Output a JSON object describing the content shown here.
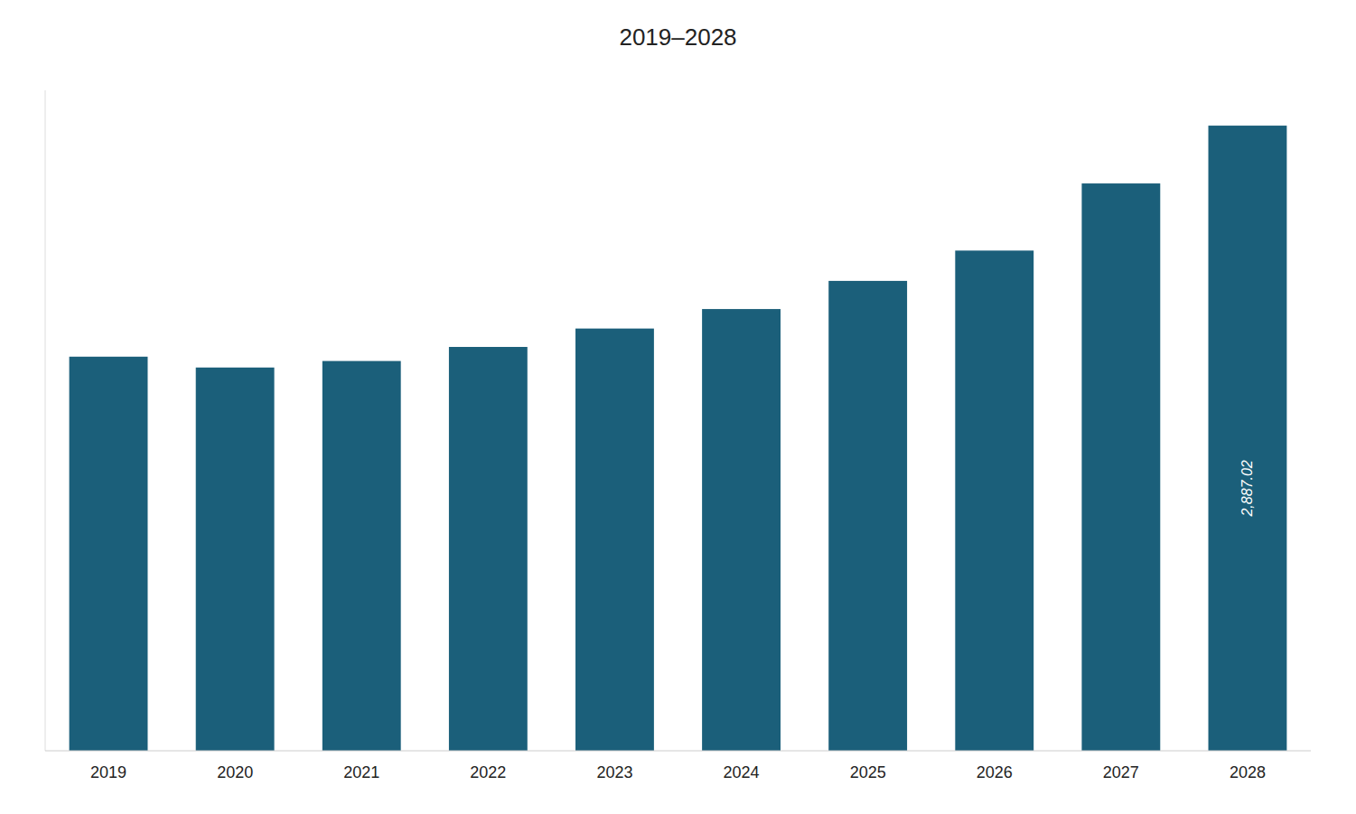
{
  "chart_data": {
    "type": "bar",
    "title": "2019–2028",
    "categories": [
      "2019",
      "2020",
      "2021",
      "2022",
      "2023",
      "2024",
      "2025",
      "2026",
      "2027",
      "2028"
    ],
    "values": [
      1820,
      1770,
      1800,
      1865,
      1950,
      2040,
      2170,
      2310,
      2620,
      2887.02
    ],
    "value_labels": [
      null,
      null,
      null,
      null,
      null,
      null,
      null,
      null,
      null,
      "2,887.02"
    ],
    "color": "#1b5f7a",
    "ylim": [
      0,
      3050
    ],
    "grid": false,
    "tick_labels": "x"
  }
}
